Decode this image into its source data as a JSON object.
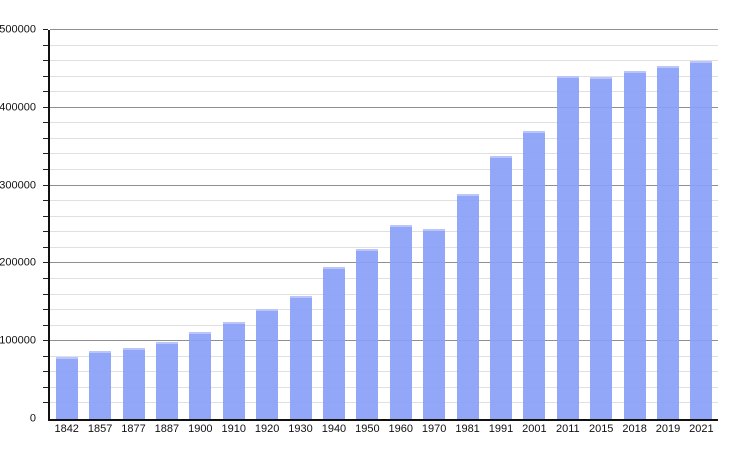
{
  "window": {
    "background_color": "#ffffff"
  },
  "chart_data": {
    "type": "bar",
    "title": "",
    "xlabel": "",
    "ylabel": "",
    "categories": [
      "1842",
      "1857",
      "1877",
      "1887",
      "1900",
      "1910",
      "1920",
      "1930",
      "1940",
      "1950",
      "1960",
      "1970",
      "1981",
      "1991",
      "2001",
      "2011",
      "2015",
      "2018",
      "2019",
      "2021"
    ],
    "values": [
      79362,
      87803,
      91805,
      98538,
      111539,
      125057,
      141846,
      158724,
      195147,
      218375,
      249771,
      243759,
      288631,
      338250,
      370745,
      441354,
      439712,
      447182,
      453258,
      460349
    ],
    "ylim": [
      0,
      500000
    ],
    "y_major_step": 100000,
    "y_minor_step": 20000,
    "y_tick_labels": [
      "0",
      "100000",
      "200000",
      "300000",
      "400000",
      "500000"
    ],
    "grid": "on",
    "legend": "none",
    "colors": {
      "bar_fill": "#8ba0f9",
      "bar_top_edge": "#bac5fb",
      "major_grid": "#8f8f8f",
      "minor_grid": "#e0e0e0",
      "axis": "#111111",
      "tick_label": "#111111"
    }
  }
}
